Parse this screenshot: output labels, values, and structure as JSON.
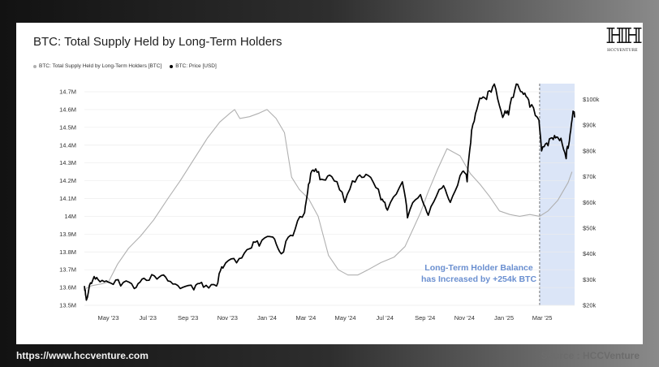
{
  "page": {
    "footer_left": "https://www.hccventure.com",
    "footer_right": "Source : HCCVenture",
    "logo_text": "HCCVENTURE",
    "logo_mark": "ℍℍ"
  },
  "chart_data": {
    "type": "line",
    "title": "BTC: Total Supply Held by Long-Term Holders",
    "legend": [
      "BTC: Total Supply Held by Long-Term Holders [BTC]",
      "BTC: Price [USD]"
    ],
    "legend_placement": "top-left",
    "grid": true,
    "x_ticks": [
      "May '23",
      "Jul '23",
      "Sep '23",
      "Nov '23",
      "Jan '24",
      "Mar '24",
      "May '24",
      "Jul '24",
      "Sep '24",
      "Nov '24",
      "Jan '25",
      "Mar '25"
    ],
    "x_range": [
      "2023-03-25",
      "2025-04-20"
    ],
    "y_left": {
      "ticks": [
        "13.5M",
        "13.6M",
        "13.7M",
        "13.8M",
        "13.9M",
        "14M",
        "14.1M",
        "14.2M",
        "14.3M",
        "14.4M",
        "14.5M",
        "14.6M",
        "14.7M"
      ],
      "range": [
        13.5,
        14.7
      ]
    },
    "y_right": {
      "ticks": [
        "$20k",
        "$30k",
        "$40k",
        "$50k",
        "$60k",
        "$70k",
        "$80k",
        "$90k",
        "$100k"
      ],
      "range": [
        20000,
        103000
      ]
    },
    "highlight": {
      "from": "2025-02-25",
      "to": "2025-04-20",
      "color": "#dbe5f7"
    },
    "annotation": [
      "Long-Term Holder Balance",
      "has Increased by +254k BTC"
    ],
    "series": [
      {
        "name": "BTC: Total Supply Held by Long-Term Holders [BTC]",
        "color": "#b0b0b0",
        "axis": "left",
        "unit": "M BTC",
        "points": [
          [
            "2023-03-25",
            13.59
          ],
          [
            "2023-04-05",
            13.61
          ],
          [
            "2023-04-20",
            13.62
          ],
          [
            "2023-05-01",
            13.63
          ],
          [
            "2023-05-15",
            13.73
          ],
          [
            "2023-06-01",
            13.82
          ],
          [
            "2023-06-20",
            13.89
          ],
          [
            "2023-07-10",
            13.98
          ],
          [
            "2023-08-01",
            14.1
          ],
          [
            "2023-08-20",
            14.2
          ],
          [
            "2023-09-10",
            14.32
          ],
          [
            "2023-10-01",
            14.44
          ],
          [
            "2023-10-20",
            14.53
          ],
          [
            "2023-11-05",
            14.58
          ],
          [
            "2023-11-12",
            14.6
          ],
          [
            "2023-11-20",
            14.55
          ],
          [
            "2023-12-05",
            14.56
          ],
          [
            "2023-12-20",
            14.58
          ],
          [
            "2024-01-01",
            14.6
          ],
          [
            "2024-01-15",
            14.55
          ],
          [
            "2024-01-28",
            14.47
          ],
          [
            "2024-02-08",
            14.22
          ],
          [
            "2024-02-20",
            14.15
          ],
          [
            "2024-03-05",
            14.1
          ],
          [
            "2024-03-20",
            14.0
          ],
          [
            "2024-04-05",
            13.78
          ],
          [
            "2024-04-20",
            13.7
          ],
          [
            "2024-05-05",
            13.67
          ],
          [
            "2024-05-20",
            13.67
          ],
          [
            "2024-06-05",
            13.7
          ],
          [
            "2024-06-25",
            13.74
          ],
          [
            "2024-07-15",
            13.77
          ],
          [
            "2024-08-01",
            13.83
          ],
          [
            "2024-08-15",
            13.94
          ],
          [
            "2024-08-25",
            14.02
          ],
          [
            "2024-09-05",
            14.13
          ],
          [
            "2024-09-20",
            14.26
          ],
          [
            "2024-10-05",
            14.38
          ],
          [
            "2024-10-25",
            14.34
          ],
          [
            "2024-11-10",
            14.24
          ],
          [
            "2024-11-25",
            14.18
          ],
          [
            "2024-12-10",
            14.11
          ],
          [
            "2024-12-25",
            14.03
          ],
          [
            "2025-01-10",
            14.01
          ],
          [
            "2025-01-25",
            14.0
          ],
          [
            "2025-02-10",
            14.01
          ],
          [
            "2025-02-25",
            14.0
          ],
          [
            "2025-03-10",
            14.03
          ],
          [
            "2025-03-25",
            14.09
          ],
          [
            "2025-04-10",
            14.19
          ],
          [
            "2025-04-16",
            14.25
          ]
        ]
      },
      {
        "name": "BTC: Price [USD]",
        "color": "#000000",
        "axis": "right",
        "unit": "USD",
        "points": [
          [
            "2023-03-25",
            27500
          ],
          [
            "2023-03-28",
            22000
          ],
          [
            "2023-04-05",
            28500
          ],
          [
            "2023-04-15",
            30000
          ],
          [
            "2023-05-01",
            29000
          ],
          [
            "2023-05-20",
            27500
          ],
          [
            "2023-06-10",
            26500
          ],
          [
            "2023-06-25",
            30500
          ],
          [
            "2023-07-15",
            30200
          ],
          [
            "2023-08-01",
            29500
          ],
          [
            "2023-08-20",
            26500
          ],
          [
            "2023-09-10",
            26000
          ],
          [
            "2023-09-25",
            27000
          ],
          [
            "2023-10-15",
            27500
          ],
          [
            "2023-10-25",
            34500
          ],
          [
            "2023-11-15",
            36500
          ],
          [
            "2023-12-05",
            42000
          ],
          [
            "2023-12-20",
            43000
          ],
          [
            "2024-01-10",
            46500
          ],
          [
            "2024-01-23",
            40000
          ],
          [
            "2024-02-10",
            47000
          ],
          [
            "2024-02-28",
            56000
          ],
          [
            "2024-03-05",
            67000
          ],
          [
            "2024-03-14",
            72000
          ],
          [
            "2024-03-25",
            69000
          ],
          [
            "2024-04-10",
            70000
          ],
          [
            "2024-04-30",
            60000
          ],
          [
            "2024-05-20",
            70000
          ],
          [
            "2024-06-05",
            70500
          ],
          [
            "2024-06-25",
            61000
          ],
          [
            "2024-07-05",
            57000
          ],
          [
            "2024-07-28",
            68000
          ],
          [
            "2024-08-05",
            54000
          ],
          [
            "2024-08-25",
            63000
          ],
          [
            "2024-09-06",
            55000
          ],
          [
            "2024-09-27",
            65500
          ],
          [
            "2024-10-10",
            60000
          ],
          [
            "2024-10-29",
            72000
          ],
          [
            "2024-11-05",
            68000
          ],
          [
            "2024-11-12",
            88000
          ],
          [
            "2024-11-22",
            98000
          ],
          [
            "2024-12-05",
            100000
          ],
          [
            "2024-12-17",
            106000
          ],
          [
            "2024-12-30",
            93000
          ],
          [
            "2025-01-08",
            94000
          ],
          [
            "2025-01-20",
            106000
          ],
          [
            "2025-01-31",
            102000
          ],
          [
            "2025-02-10",
            97000
          ],
          [
            "2025-02-24",
            92000
          ],
          [
            "2025-02-28",
            80000
          ],
          [
            "2025-03-10",
            82000
          ],
          [
            "2025-03-20",
            86000
          ],
          [
            "2025-03-28",
            84000
          ],
          [
            "2025-04-07",
            77000
          ],
          [
            "2025-04-12",
            84000
          ],
          [
            "2025-04-17",
            94000
          ],
          [
            "2025-04-20",
            93000
          ]
        ]
      }
    ]
  }
}
